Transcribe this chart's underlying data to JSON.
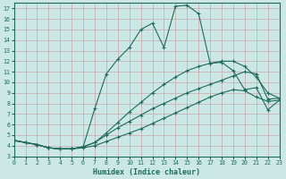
{
  "xlabel": "Humidex (Indice chaleur)",
  "bg_color": "#cce8e6",
  "line_color": "#1e6b5a",
  "grid_color": "#b8d8d4",
  "xlim": [
    0,
    23
  ],
  "ylim": [
    3,
    17.5
  ],
  "xticks": [
    0,
    1,
    2,
    3,
    4,
    5,
    6,
    7,
    8,
    9,
    10,
    11,
    12,
    13,
    14,
    15,
    16,
    17,
    18,
    19,
    20,
    21,
    22,
    23
  ],
  "yticks": [
    3,
    4,
    5,
    6,
    7,
    8,
    9,
    10,
    11,
    12,
    13,
    14,
    15,
    16,
    17
  ],
  "lines": [
    {
      "x": [
        0,
        1,
        2,
        3,
        4,
        5,
        6,
        7,
        8,
        9,
        10,
        11,
        12,
        13,
        14,
        15,
        16,
        17,
        18,
        19,
        20,
        21,
        22,
        23
      ],
      "y": [
        4.5,
        4.3,
        4.1,
        3.8,
        3.7,
        3.7,
        3.8,
        4.0,
        4.4,
        4.8,
        5.2,
        5.6,
        6.1,
        6.6,
        7.1,
        7.6,
        8.1,
        8.6,
        9.0,
        9.3,
        9.2,
        8.6,
        8.2,
        8.3
      ]
    },
    {
      "x": [
        0,
        1,
        2,
        3,
        4,
        5,
        6,
        7,
        8,
        9,
        10,
        11,
        12,
        13,
        14,
        15,
        16,
        17,
        18,
        19,
        20,
        21,
        22,
        23
      ],
      "y": [
        4.5,
        4.3,
        4.1,
        3.8,
        3.7,
        3.7,
        3.9,
        4.3,
        5.0,
        5.7,
        6.3,
        6.9,
        7.5,
        8.0,
        8.5,
        9.0,
        9.4,
        9.8,
        10.2,
        10.6,
        11.0,
        10.8,
        8.4,
        8.5
      ]
    },
    {
      "x": [
        0,
        2,
        3,
        4,
        5,
        6,
        7,
        8,
        9,
        10,
        11,
        12,
        13,
        14,
        15,
        16,
        17,
        18,
        19,
        20,
        21,
        22,
        23
      ],
      "y": [
        4.5,
        4.1,
        3.8,
        3.7,
        3.7,
        3.9,
        7.5,
        10.8,
        12.2,
        13.3,
        15.0,
        15.6,
        13.3,
        17.2,
        17.3,
        16.5,
        11.8,
        11.9,
        11.1,
        9.3,
        9.5,
        7.4,
        8.3
      ]
    },
    {
      "x": [
        0,
        1,
        2,
        3,
        4,
        5,
        6,
        7,
        8,
        9,
        10,
        11,
        12,
        13,
        14,
        15,
        16,
        17,
        18,
        19,
        20,
        21,
        22,
        23
      ],
      "y": [
        4.5,
        4.3,
        4.1,
        3.8,
        3.7,
        3.7,
        3.9,
        4.3,
        5.2,
        6.2,
        7.2,
        8.1,
        9.0,
        9.8,
        10.5,
        11.1,
        11.5,
        11.8,
        12.0,
        12.0,
        11.5,
        10.5,
        9.0,
        8.5
      ]
    }
  ]
}
